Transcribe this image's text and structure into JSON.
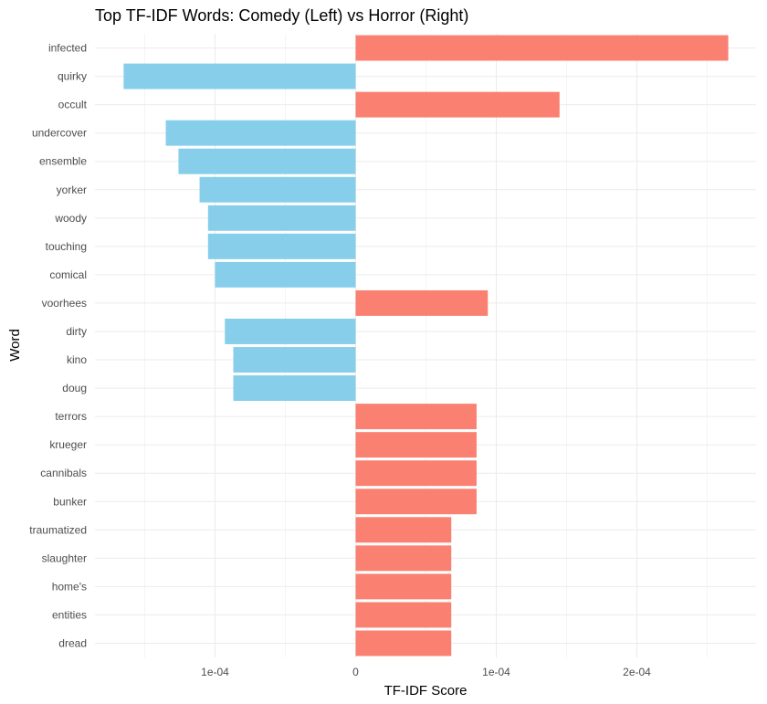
{
  "chart_data": {
    "type": "bar",
    "orientation": "horizontal",
    "title": "Top TF-IDF Words: Comedy (Left) vs Horror (Right)",
    "xlabel": "TF-IDF Score",
    "ylabel": "Word",
    "grid": true,
    "xlim": [
      -0.000165,
      0.000267
    ],
    "x_ticks": [
      -0.0001,
      0,
      0.0001,
      0.0002
    ],
    "x_tick_labels": [
      "1e-04",
      "0",
      "1e-04",
      "2e-04"
    ],
    "colors": {
      "comedy": "#87ceeb",
      "horror": "#fa8072"
    },
    "categories": [
      "infected",
      "quirky",
      "occult",
      "undercover",
      "ensemble",
      "yorker",
      "woody",
      "touching",
      "comical",
      "voorhees",
      "dirty",
      "kino",
      "doug",
      "terrors",
      "krueger",
      "cannibals",
      "bunker",
      "traumatized",
      "slaughter",
      "home's",
      "entities",
      "dread"
    ],
    "groups": [
      "horror",
      "comedy",
      "horror",
      "comedy",
      "comedy",
      "comedy",
      "comedy",
      "comedy",
      "comedy",
      "horror",
      "comedy",
      "comedy",
      "comedy",
      "horror",
      "horror",
      "horror",
      "horror",
      "horror",
      "horror",
      "horror",
      "horror",
      "horror"
    ],
    "values": [
      0.000265,
      -0.000165,
      0.000145,
      -0.000135,
      -0.000126,
      -0.000111,
      -0.000105,
      -0.000105,
      -0.0001,
      9.4e-05,
      -9.3e-05,
      -8.7e-05,
      -8.7e-05,
      8.6e-05,
      8.6e-05,
      8.6e-05,
      8.6e-05,
      6.8e-05,
      6.8e-05,
      6.8e-05,
      6.8e-05,
      6.8e-05
    ]
  }
}
